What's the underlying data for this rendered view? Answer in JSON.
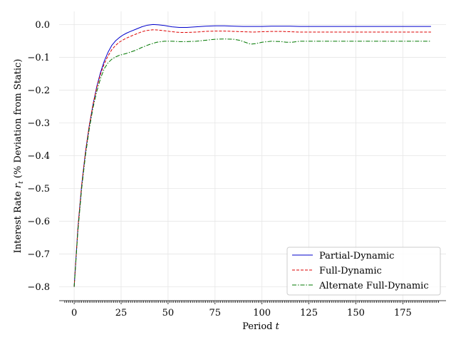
{
  "chart_data": {
    "type": "line",
    "xlabel_main": "Period",
    "xlabel_var": "t",
    "ylabel_main": "Interest Rate",
    "ylabel_var": "r",
    "ylabel_sub": "t",
    "ylabel_rest": "(% Deviation from Static)",
    "xlim": [
      -8,
      198
    ],
    "ylim": [
      -0.84,
      0.04
    ],
    "x_ticks": [
      0,
      25,
      50,
      75,
      100,
      125,
      150,
      175
    ],
    "x_tick_labels": [
      "0",
      "25",
      "50",
      "75",
      "100",
      "125",
      "150",
      "175"
    ],
    "y_ticks": [
      0.0,
      -0.1,
      -0.2,
      -0.3,
      -0.4,
      -0.5,
      -0.6,
      -0.7,
      -0.8
    ],
    "y_tick_labels": [
      "0.0",
      "−0.1",
      "−0.2",
      "−0.3",
      "−0.4",
      "−0.5",
      "−0.6",
      "−0.7",
      "−0.8"
    ],
    "grid": true,
    "legend_position": "bottom-right",
    "series": [
      {
        "name": "Partial-Dynamic",
        "color": "#0000cc",
        "dash": "solid",
        "points": [
          [
            0,
            -0.8
          ],
          [
            2,
            -0.62
          ],
          [
            4,
            -0.49
          ],
          [
            6,
            -0.39
          ],
          [
            8,
            -0.31
          ],
          [
            10,
            -0.245
          ],
          [
            12,
            -0.19
          ],
          [
            14,
            -0.147
          ],
          [
            16,
            -0.112
          ],
          [
            18,
            -0.085
          ],
          [
            20,
            -0.064
          ],
          [
            22,
            -0.05
          ],
          [
            24,
            -0.04
          ],
          [
            26,
            -0.032
          ],
          [
            28,
            -0.026
          ],
          [
            30,
            -0.021
          ],
          [
            33,
            -0.014
          ],
          [
            36,
            -0.007
          ],
          [
            39,
            -0.002
          ],
          [
            42,
            0.0
          ],
          [
            45,
            -0.001
          ],
          [
            48,
            -0.003
          ],
          [
            52,
            -0.007
          ],
          [
            56,
            -0.009
          ],
          [
            60,
            -0.009
          ],
          [
            65,
            -0.007
          ],
          [
            70,
            -0.005
          ],
          [
            75,
            -0.004
          ],
          [
            80,
            -0.004
          ],
          [
            85,
            -0.005
          ],
          [
            90,
            -0.006
          ],
          [
            95,
            -0.006
          ],
          [
            100,
            -0.006
          ],
          [
            105,
            -0.005
          ],
          [
            110,
            -0.005
          ],
          [
            115,
            -0.005
          ],
          [
            120,
            -0.006
          ],
          [
            130,
            -0.006
          ],
          [
            140,
            -0.006
          ],
          [
            150,
            -0.006
          ],
          [
            160,
            -0.006
          ],
          [
            170,
            -0.006
          ],
          [
            180,
            -0.006
          ],
          [
            190,
            -0.006
          ]
        ]
      },
      {
        "name": "Full-Dynamic",
        "color": "#dd0000",
        "dash": "dashed",
        "points": [
          [
            0,
            -0.8
          ],
          [
            2,
            -0.62
          ],
          [
            4,
            -0.49
          ],
          [
            6,
            -0.39
          ],
          [
            8,
            -0.31
          ],
          [
            10,
            -0.245
          ],
          [
            12,
            -0.193
          ],
          [
            14,
            -0.152
          ],
          [
            16,
            -0.12
          ],
          [
            18,
            -0.096
          ],
          [
            20,
            -0.077
          ],
          [
            22,
            -0.064
          ],
          [
            24,
            -0.054
          ],
          [
            26,
            -0.047
          ],
          [
            28,
            -0.041
          ],
          [
            30,
            -0.036
          ],
          [
            33,
            -0.029
          ],
          [
            36,
            -0.022
          ],
          [
            39,
            -0.018
          ],
          [
            42,
            -0.016
          ],
          [
            45,
            -0.017
          ],
          [
            48,
            -0.019
          ],
          [
            52,
            -0.022
          ],
          [
            56,
            -0.024
          ],
          [
            60,
            -0.024
          ],
          [
            65,
            -0.023
          ],
          [
            70,
            -0.021
          ],
          [
            75,
            -0.02
          ],
          [
            80,
            -0.02
          ],
          [
            85,
            -0.021
          ],
          [
            90,
            -0.022
          ],
          [
            95,
            -0.023
          ],
          [
            100,
            -0.022
          ],
          [
            105,
            -0.021
          ],
          [
            110,
            -0.021
          ],
          [
            115,
            -0.022
          ],
          [
            120,
            -0.023
          ],
          [
            130,
            -0.023
          ],
          [
            140,
            -0.023
          ],
          [
            150,
            -0.023
          ],
          [
            160,
            -0.023
          ],
          [
            170,
            -0.023
          ],
          [
            180,
            -0.023
          ],
          [
            190,
            -0.023
          ]
        ]
      },
      {
        "name": "Alternate Full-Dynamic",
        "color": "#007700",
        "dash": "dashdot",
        "points": [
          [
            0,
            -0.8
          ],
          [
            2,
            -0.63
          ],
          [
            4,
            -0.5
          ],
          [
            6,
            -0.4
          ],
          [
            8,
            -0.32
          ],
          [
            10,
            -0.255
          ],
          [
            12,
            -0.205
          ],
          [
            14,
            -0.165
          ],
          [
            16,
            -0.135
          ],
          [
            18,
            -0.117
          ],
          [
            20,
            -0.106
          ],
          [
            22,
            -0.099
          ],
          [
            24,
            -0.094
          ],
          [
            26,
            -0.091
          ],
          [
            28,
            -0.088
          ],
          [
            30,
            -0.084
          ],
          [
            33,
            -0.078
          ],
          [
            36,
            -0.07
          ],
          [
            40,
            -0.061
          ],
          [
            44,
            -0.054
          ],
          [
            48,
            -0.051
          ],
          [
            52,
            -0.051
          ],
          [
            56,
            -0.052
          ],
          [
            60,
            -0.052
          ],
          [
            65,
            -0.051
          ],
          [
            70,
            -0.048
          ],
          [
            75,
            -0.045
          ],
          [
            80,
            -0.044
          ],
          [
            85,
            -0.045
          ],
          [
            88,
            -0.048
          ],
          [
            91,
            -0.054
          ],
          [
            94,
            -0.06
          ],
          [
            97,
            -0.058
          ],
          [
            100,
            -0.054
          ],
          [
            105,
            -0.051
          ],
          [
            110,
            -0.052
          ],
          [
            113,
            -0.054
          ],
          [
            116,
            -0.054
          ],
          [
            120,
            -0.051
          ],
          [
            125,
            -0.051
          ],
          [
            130,
            -0.051
          ],
          [
            140,
            -0.051
          ],
          [
            150,
            -0.051
          ],
          [
            160,
            -0.051
          ],
          [
            170,
            -0.051
          ],
          [
            180,
            -0.051
          ],
          [
            190,
            -0.051
          ]
        ]
      }
    ]
  }
}
